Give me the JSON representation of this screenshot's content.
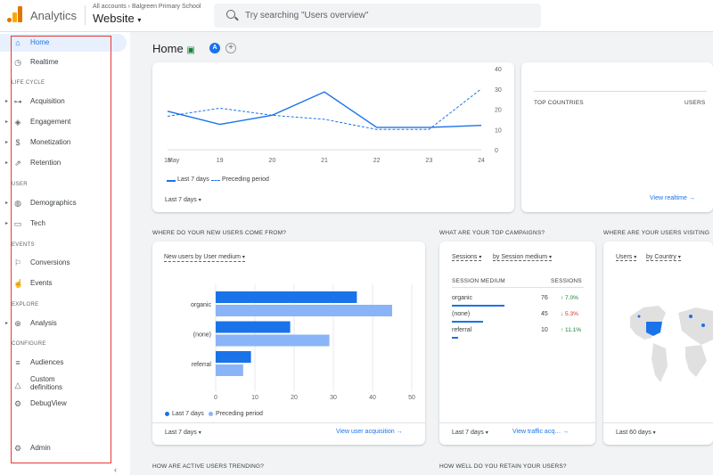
{
  "topbar": {
    "app_title": "Analytics",
    "breadcrumb": "All accounts › Balgreen Primary School",
    "property": "Website",
    "search_placeholder": "Try searching \"Users overview\""
  },
  "sidebar": {
    "items": [
      {
        "label": "Home",
        "icon": "home-icon",
        "active": true
      },
      {
        "label": "Realtime",
        "icon": "clock-icon"
      },
      {
        "label": "Acquisition",
        "icon": "acquisition-icon"
      },
      {
        "label": "Engagement",
        "icon": "tag-icon"
      },
      {
        "label": "Monetization",
        "icon": "dollar-icon"
      },
      {
        "label": "Retention",
        "icon": "retention-icon"
      },
      {
        "label": "Demographics",
        "icon": "globe-icon"
      },
      {
        "label": "Tech",
        "icon": "devices-icon"
      },
      {
        "label": "Conversions",
        "icon": "flag-icon"
      },
      {
        "label": "Events",
        "icon": "touch-icon"
      },
      {
        "label": "Analysis",
        "icon": "analysis-icon"
      },
      {
        "label": "Audiences",
        "icon": "audiences-icon"
      },
      {
        "label": "Custom definitions",
        "icon": "custom-definitions-icon"
      },
      {
        "label": "DebugView",
        "icon": "debug-icon"
      },
      {
        "label": "Admin",
        "icon": "gear-icon"
      }
    ],
    "sections": {
      "lifecycle": "LIFE CYCLE",
      "user": "USER",
      "events": "EVENTS",
      "explore": "EXPLORE",
      "configure": "CONFIGURE"
    }
  },
  "header": {
    "title": "Home",
    "avatar": "A",
    "add": "+"
  },
  "top_chart": {
    "y_ticks": [
      "40",
      "30",
      "20",
      "10",
      "0"
    ],
    "x_ticks": [
      "18",
      "19",
      "20",
      "21",
      "22",
      "23",
      "24"
    ],
    "x_sub": "May",
    "legend_current": "Last 7 days",
    "legend_previous": "Preceding period",
    "date_range": "Last 7 days",
    "chart_data": {
      "type": "line",
      "x": [
        "18",
        "19",
        "20",
        "21",
        "22",
        "23",
        "24"
      ],
      "ylim": [
        0,
        40
      ],
      "series": [
        {
          "name": "Last 7 days",
          "values": [
            19,
            12.5,
            17,
            28.5,
            11,
            11,
            12
          ]
        },
        {
          "name": "Preceding period",
          "values": [
            16.5,
            20.5,
            17,
            15,
            10,
            10,
            30
          ]
        }
      ]
    }
  },
  "realtime": {
    "col1": "TOP COUNTRIES",
    "col2": "USERS",
    "link": "View realtime →"
  },
  "acq": {
    "heading": "WHERE DO YOUR NEW USERS COME FROM?",
    "selector": "New users by User medium",
    "legend_current": "Last 7 days",
    "legend_previous": "Preceding period",
    "date_range": "Last 7 days",
    "link": "View user acquisition →",
    "chart_data": {
      "type": "bar",
      "categories": [
        "organic",
        "(none)",
        "referral"
      ],
      "x_ticks": [
        "0",
        "10",
        "20",
        "30",
        "40",
        "50"
      ],
      "xlim": [
        0,
        50
      ],
      "series": [
        {
          "name": "Last 7 days",
          "values": [
            36,
            19,
            9
          ]
        },
        {
          "name": "Preceding period",
          "values": [
            45,
            29,
            7
          ]
        }
      ]
    }
  },
  "campaigns": {
    "heading": "WHAT ARE YOUR TOP CAMPAIGNS?",
    "selector_a": "Sessions",
    "selector_b": "by Session medium",
    "col1": "SESSION MEDIUM",
    "col2": "SESSIONS",
    "rows": [
      {
        "name": "organic",
        "value": "76",
        "change": "↑ 7.0%",
        "share": 0.64
      },
      {
        "name": "(none)",
        "value": "45",
        "change": "↓ 5.3%",
        "share": 0.38
      },
      {
        "name": "referral",
        "value": "10",
        "change": "↑ 11.1%",
        "share": 0.08
      }
    ],
    "date_range": "Last 7 days",
    "link": "View traffic acq…  →"
  },
  "map": {
    "heading": "WHERE ARE YOUR USERS VISITING",
    "selector_a": "Users",
    "selector_b": "by Country",
    "date_range": "Last 60 days"
  },
  "bottom": {
    "h1": "HOW ARE ACTIVE USERS TRENDING?",
    "h2": "HOW WELL DO YOU RETAIN YOUR USERS?"
  },
  "colors": {
    "primary": "#1a73e8",
    "secondary": "#8ab4f8",
    "highlight": "#e53935"
  }
}
